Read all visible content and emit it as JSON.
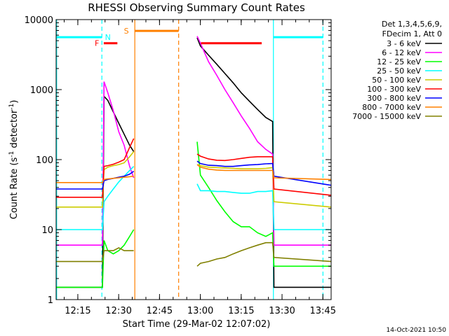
{
  "chart_data": {
    "type": "line",
    "title": "RHESSI Observing Summary Count Rates",
    "xlabel": "Start Time (29-Mar-02 12:07:02)",
    "ylabel_main": "Count Rate (s",
    "ylabel_sup1": "-1",
    "ylabel_mid": " detector",
    "ylabel_sup2": "-1",
    "ylabel_end": ")",
    "yscale": "log",
    "ylim": [
      1,
      10000
    ],
    "xlim_minutes": [
      0,
      101
    ],
    "xticks": [
      {
        "label": "12:15",
        "min": 7.97
      },
      {
        "label": "12:30",
        "min": 22.97
      },
      {
        "label": "12:45",
        "min": 37.97
      },
      {
        "label": "13:00",
        "min": 52.97
      },
      {
        "label": "13:15",
        "min": 67.97
      },
      {
        "label": "13:30",
        "min": 82.97
      },
      {
        "label": "13:45",
        "min": 97.97
      }
    ],
    "yticks": [
      {
        "label": "1",
        "v": 1
      },
      {
        "label": "10",
        "v": 10
      },
      {
        "label": "100",
        "v": 100
      },
      {
        "label": "1000",
        "v": 1000
      },
      {
        "label": "10000",
        "v": 10000
      }
    ],
    "legend_header": [
      "Det 1,3,4,5,6,9,",
      "FDecim 1, Att 0"
    ],
    "series": [
      {
        "name": "3 - 6 keV",
        "color": "#000000",
        "points": [
          [
            0,
            1.5
          ],
          [
            17.0,
            1.5
          ],
          [
            17.6,
            800
          ],
          [
            19,
            700
          ],
          [
            21,
            480
          ],
          [
            23,
            330
          ],
          [
            25,
            230
          ],
          [
            27,
            160
          ],
          [
            28.5,
            130
          ],
          [
            51.6,
            null
          ],
          [
            51.8,
            5500
          ],
          [
            53,
            4200
          ],
          [
            56,
            3100
          ],
          [
            59,
            2300
          ],
          [
            62,
            1700
          ],
          [
            65,
            1250
          ],
          [
            68,
            900
          ],
          [
            71,
            680
          ],
          [
            74,
            520
          ],
          [
            77,
            400
          ],
          [
            79.5,
            350
          ],
          [
            80,
            1.5
          ],
          [
            101,
            1.5
          ]
        ]
      },
      {
        "name": "6 - 12 keV",
        "color": "#ff00ff",
        "points": [
          [
            0,
            6
          ],
          [
            17.0,
            6
          ],
          [
            17.6,
            1300
          ],
          [
            19,
            900
          ],
          [
            21,
            500
          ],
          [
            23,
            250
          ],
          [
            25,
            160
          ],
          [
            27,
            80
          ],
          [
            28.5,
            55
          ],
          [
            51.6,
            null
          ],
          [
            51.8,
            5800
          ],
          [
            53,
            4600
          ],
          [
            56,
            2500
          ],
          [
            59,
            1600
          ],
          [
            62,
            1000
          ],
          [
            65,
            650
          ],
          [
            68,
            420
          ],
          [
            71,
            280
          ],
          [
            74,
            180
          ],
          [
            77,
            140
          ],
          [
            79.5,
            120
          ],
          [
            80,
            6
          ],
          [
            101,
            6
          ]
        ]
      },
      {
        "name": "12 - 25 keV",
        "color": "#00ff00",
        "points": [
          [
            0,
            1.5
          ],
          [
            17.0,
            1.5
          ],
          [
            17.6,
            7
          ],
          [
            19,
            5
          ],
          [
            21,
            4.5
          ],
          [
            23,
            5
          ],
          [
            25,
            6
          ],
          [
            27,
            8
          ],
          [
            28.5,
            10
          ],
          [
            51.6,
            null
          ],
          [
            51.8,
            180
          ],
          [
            53,
            60
          ],
          [
            56,
            40
          ],
          [
            59,
            26
          ],
          [
            62,
            18
          ],
          [
            65,
            13
          ],
          [
            68,
            11
          ],
          [
            71,
            11
          ],
          [
            74,
            9
          ],
          [
            77,
            8
          ],
          [
            79.5,
            9
          ],
          [
            80,
            3
          ],
          [
            101,
            3
          ]
        ]
      },
      {
        "name": "25 - 50 keV",
        "color": "#00ffff",
        "points": [
          [
            0,
            10
          ],
          [
            17.0,
            10
          ],
          [
            17.6,
            25
          ],
          [
            19,
            30
          ],
          [
            21,
            38
          ],
          [
            23,
            48
          ],
          [
            25,
            58
          ],
          [
            27,
            70
          ],
          [
            28.5,
            80
          ],
          [
            51.6,
            null
          ],
          [
            51.8,
            45
          ],
          [
            53,
            36
          ],
          [
            56,
            36
          ],
          [
            59,
            35
          ],
          [
            62,
            35
          ],
          [
            65,
            34
          ],
          [
            68,
            33
          ],
          [
            71,
            33
          ],
          [
            74,
            35
          ],
          [
            77,
            35
          ],
          [
            79.5,
            36
          ],
          [
            80,
            10
          ],
          [
            101,
            10
          ]
        ]
      },
      {
        "name": "50 - 100 keV",
        "color": "#cccc00",
        "points": [
          [
            0,
            21
          ],
          [
            17.0,
            21
          ],
          [
            17.6,
            72
          ],
          [
            19,
            78
          ],
          [
            21,
            82
          ],
          [
            23,
            85
          ],
          [
            25,
            90
          ],
          [
            27,
            110
          ],
          [
            28.5,
            130
          ],
          [
            51.6,
            null
          ],
          [
            51.8,
            85
          ],
          [
            53,
            82
          ],
          [
            56,
            78
          ],
          [
            59,
            77
          ],
          [
            62,
            76
          ],
          [
            65,
            75
          ],
          [
            68,
            74
          ],
          [
            71,
            74
          ],
          [
            74,
            74
          ],
          [
            77,
            75
          ],
          [
            79.5,
            77
          ],
          [
            80,
            25
          ],
          [
            101,
            21
          ]
        ]
      },
      {
        "name": "100 - 300 keV",
        "color": "#ff0000",
        "points": [
          [
            0,
            29
          ],
          [
            17.0,
            29
          ],
          [
            17.6,
            80
          ],
          [
            19,
            82
          ],
          [
            21,
            86
          ],
          [
            23,
            92
          ],
          [
            25,
            100
          ],
          [
            27,
            150
          ],
          [
            28.5,
            200
          ],
          [
            51.6,
            null
          ],
          [
            51.8,
            120
          ],
          [
            53,
            112
          ],
          [
            56,
            102
          ],
          [
            59,
            98
          ],
          [
            62,
            97
          ],
          [
            65,
            100
          ],
          [
            68,
            104
          ],
          [
            71,
            108
          ],
          [
            74,
            110
          ],
          [
            77,
            110
          ],
          [
            79.5,
            110
          ],
          [
            80,
            38
          ],
          [
            101,
            31
          ]
        ]
      },
      {
        "name": "300 - 800 keV",
        "color": "#0000ff",
        "points": [
          [
            0,
            38
          ],
          [
            17.0,
            38
          ],
          [
            17.6,
            50
          ],
          [
            19,
            52
          ],
          [
            21,
            54
          ],
          [
            23,
            56
          ],
          [
            25,
            58
          ],
          [
            27,
            62
          ],
          [
            28.5,
            68
          ],
          [
            51.6,
            null
          ],
          [
            51.8,
            95
          ],
          [
            53,
            88
          ],
          [
            56,
            83
          ],
          [
            59,
            82
          ],
          [
            62,
            80
          ],
          [
            65,
            80
          ],
          [
            68,
            82
          ],
          [
            71,
            84
          ],
          [
            74,
            85
          ],
          [
            77,
            87
          ],
          [
            79.5,
            88
          ],
          [
            80,
            58
          ],
          [
            101,
            43
          ]
        ]
      },
      {
        "name": "800 - 7000 keV",
        "color": "#ff8000",
        "points": [
          [
            0,
            47
          ],
          [
            17.0,
            47
          ],
          [
            17.6,
            52
          ],
          [
            19,
            53
          ],
          [
            21,
            54
          ],
          [
            23,
            55
          ],
          [
            25,
            56
          ],
          [
            27,
            57
          ],
          [
            28.5,
            58
          ],
          [
            51.6,
            null
          ],
          [
            51.8,
            85
          ],
          [
            53,
            78
          ],
          [
            56,
            73
          ],
          [
            59,
            71
          ],
          [
            62,
            70
          ],
          [
            65,
            70
          ],
          [
            68,
            70
          ],
          [
            71,
            70
          ],
          [
            74,
            70
          ],
          [
            77,
            70
          ],
          [
            79.5,
            70
          ],
          [
            80,
            55
          ],
          [
            101,
            52
          ]
        ]
      },
      {
        "name": "7000 - 15000 keV",
        "color": "#808000",
        "points": [
          [
            0,
            3.5
          ],
          [
            17.0,
            3.5
          ],
          [
            17.6,
            5
          ],
          [
            19,
            5
          ],
          [
            21,
            5
          ],
          [
            23,
            5.5
          ],
          [
            25,
            5
          ],
          [
            27,
            5
          ],
          [
            28.5,
            5
          ],
          [
            51.6,
            null
          ],
          [
            51.8,
            3
          ],
          [
            53,
            3.3
          ],
          [
            56,
            3.5
          ],
          [
            59,
            3.8
          ],
          [
            62,
            4
          ],
          [
            65,
            4.5
          ],
          [
            68,
            5
          ],
          [
            71,
            5.5
          ],
          [
            74,
            6
          ],
          [
            77,
            6.5
          ],
          [
            79.5,
            6.5
          ],
          [
            80,
            4
          ],
          [
            101,
            3.5
          ]
        ]
      }
    ],
    "flags": [
      {
        "label": "N",
        "color": "#00ffff",
        "y": 5600,
        "segments": [
          [
            0,
            16.8
          ],
          [
            79.8,
            98.0
          ]
        ],
        "label_at": 19.0
      },
      {
        "label": "F",
        "color": "#ff0000",
        "y": 4600,
        "segments": [
          [
            17.5,
            22.5
          ],
          [
            53.2,
            75.5
          ]
        ],
        "label_at": 15.0
      },
      {
        "label": "S",
        "color": "#ff8000",
        "y": 6900,
        "segments": [
          [
            28.9,
            45.0
          ]
        ],
        "label_at": 25.8
      }
    ],
    "vlines": [
      {
        "min": 0.2,
        "color": "#00ffff",
        "dash": false
      },
      {
        "min": 16.8,
        "color": "#00ffff",
        "dash": true
      },
      {
        "min": 28.9,
        "color": "#ff8000",
        "dash": false
      },
      {
        "min": 45.0,
        "color": "#ff8000",
        "dash": true
      },
      {
        "min": 79.8,
        "color": "#00ffff",
        "dash": false
      },
      {
        "min": 98.0,
        "color": "#00ffff",
        "dash": true
      }
    ]
  },
  "footer_date": "14-Oct-2021 10:50"
}
